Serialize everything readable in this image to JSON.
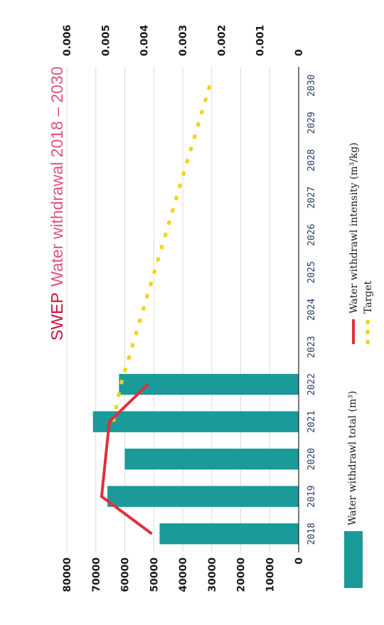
{
  "chart_data": {
    "type": "bar",
    "title_prefix": "SWEP",
    "title_rest": "Water withdrawal 2018 – 2030",
    "categories": [
      "2018",
      "2019",
      "2020",
      "2021",
      "2022",
      "2023",
      "2024",
      "2025",
      "2026",
      "2027",
      "2028",
      "2029",
      "2030"
    ],
    "left_axis_ticks": [
      "0",
      "10000",
      "20000",
      "30000",
      "40000",
      "50000",
      "60000",
      "70000",
      "80000"
    ],
    "right_axis_ticks": [
      "0",
      "0.001",
      "0.002",
      "0.003",
      "0.004",
      "0.005",
      "0.006"
    ],
    "left_ylim": [
      0,
      80000
    ],
    "right_ylim": [
      0,
      0.006
    ],
    "grid": true,
    "legend_position": "bottom",
    "bars": {
      "name": "Water withdrawl total (m³)",
      "color": "#1a9a98",
      "values": [
        48000,
        66000,
        60000,
        71000,
        62000
      ]
    },
    "intensity": {
      "name": "Water withdrawl intensity (m³/kg)",
      "color": "#e0303a",
      "values": [
        0.0038,
        0.0051,
        null,
        0.0049,
        0.0039
      ]
    },
    "target": {
      "name": "Target",
      "color": "#f2d21a",
      "values": [
        null,
        null,
        null,
        0.0048,
        0.0046,
        null,
        null,
        null,
        null,
        null,
        null,
        null,
        0.0023
      ]
    }
  }
}
